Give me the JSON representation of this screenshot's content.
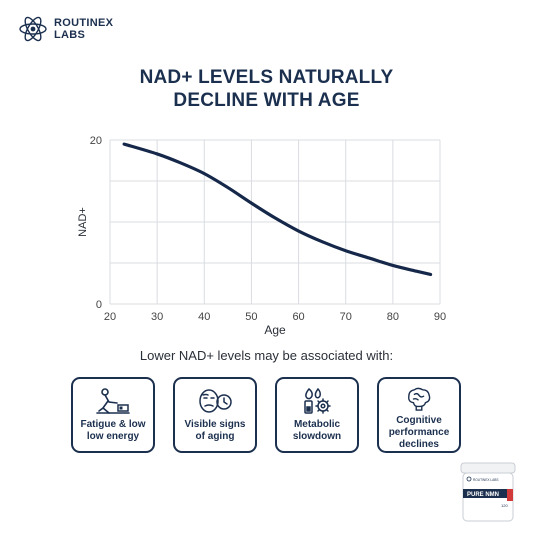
{
  "brand": {
    "line1": "ROUTINEX",
    "line2": "LABS"
  },
  "headline": {
    "line1": "NAD+ LEVELS NATURALLY",
    "line2": "DECLINE WITH AGE"
  },
  "chart_data": {
    "type": "line",
    "title": "",
    "xlabel": "Age",
    "ylabel": "NAD+",
    "xlim": [
      20,
      90
    ],
    "ylim": [
      0,
      20
    ],
    "x_ticks": [
      20,
      30,
      40,
      50,
      60,
      70,
      80,
      90
    ],
    "y_ticks": [
      0,
      20
    ],
    "grid": true,
    "line_color": "#16284a",
    "series": [
      {
        "x": [
          23,
          30,
          35,
          40,
          45,
          50,
          55,
          60,
          65,
          70,
          75,
          80,
          85,
          88
        ],
        "y": [
          19.5,
          18.3,
          17.2,
          15.9,
          14.2,
          12.3,
          10.5,
          8.9,
          7.6,
          6.5,
          5.6,
          4.7,
          4.0,
          3.6
        ]
      }
    ]
  },
  "associated_text": "Lower NAD+ levels may be associated with:",
  "cards": [
    {
      "icon": "fatigue-icon",
      "line1": "Fatigue & low",
      "line2": "low energy"
    },
    {
      "icon": "aging-face-icon",
      "line1": "Visible signs",
      "line2": "of aging"
    },
    {
      "icon": "metabolism-icon",
      "line1": "Metabolic",
      "line2": "slowdown"
    },
    {
      "icon": "brain-icon",
      "line1": "Cognitive",
      "line2": "performance",
      "line3": "declines"
    }
  ],
  "product": {
    "brand": "ROUTINEX LABS",
    "name": "PURE NMN",
    "count": "120"
  },
  "colors": {
    "primary": "#1b2f4e",
    "grid": "#d9dce2",
    "accent": "#d23a3a"
  }
}
